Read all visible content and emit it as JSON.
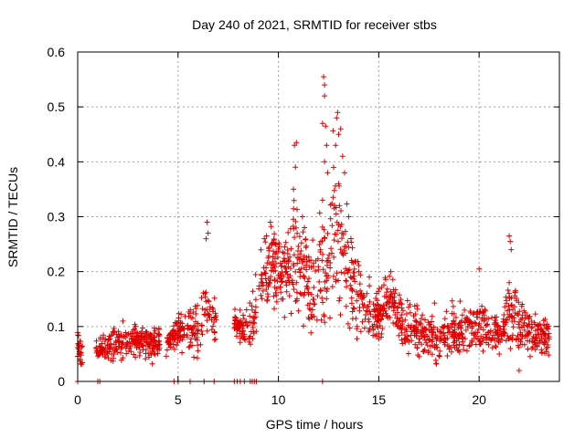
{
  "chart_data": {
    "type": "scatter",
    "title": "Day 240 of 2021, SRMTID for receiver stbs",
    "xlabel": "GPS time / hours",
    "ylabel": "SRMTID / TECUs",
    "xlim": [
      0,
      24
    ],
    "ylim": [
      0,
      0.6
    ],
    "xticks": [
      0,
      5,
      10,
      15,
      20
    ],
    "yticks": [
      0,
      0.1,
      0.2,
      0.3,
      0.4,
      0.5,
      0.6
    ],
    "grid": true,
    "marker": "plus",
    "color": "#e00000",
    "profile": [
      {
        "x": 0.0,
        "y": 0.06,
        "spread": 0.02
      },
      {
        "x": 0.3,
        "y": 0.05,
        "spread": 0.02
      },
      {
        "x": 1.0,
        "y": 0.06,
        "spread": 0.015
      },
      {
        "x": 2.0,
        "y": 0.07,
        "spread": 0.02
      },
      {
        "x": 3.0,
        "y": 0.075,
        "spread": 0.02
      },
      {
        "x": 3.8,
        "y": 0.07,
        "spread": 0.02
      },
      {
        "x": 4.5,
        "y": 0.075,
        "spread": 0.015
      },
      {
        "x": 5.0,
        "y": 0.09,
        "spread": 0.02
      },
      {
        "x": 5.6,
        "y": 0.1,
        "spread": 0.03
      },
      {
        "x": 6.0,
        "y": 0.08,
        "spread": 0.03
      },
      {
        "x": 6.5,
        "y": 0.14,
        "spread": 0.04
      },
      {
        "x": 6.8,
        "y": 0.11,
        "spread": 0.03
      },
      {
        "x": 8.0,
        "y": 0.1,
        "spread": 0.02
      },
      {
        "x": 8.6,
        "y": 0.1,
        "spread": 0.03
      },
      {
        "x": 9.2,
        "y": 0.18,
        "spread": 0.05
      },
      {
        "x": 9.7,
        "y": 0.22,
        "spread": 0.05
      },
      {
        "x": 10.3,
        "y": 0.2,
        "spread": 0.05
      },
      {
        "x": 10.8,
        "y": 0.24,
        "spread": 0.08
      },
      {
        "x": 11.3,
        "y": 0.2,
        "spread": 0.05
      },
      {
        "x": 11.8,
        "y": 0.15,
        "spread": 0.05
      },
      {
        "x": 12.3,
        "y": 0.22,
        "spread": 0.08
      },
      {
        "x": 12.8,
        "y": 0.28,
        "spread": 0.1
      },
      {
        "x": 13.3,
        "y": 0.22,
        "spread": 0.08
      },
      {
        "x": 13.8,
        "y": 0.17,
        "spread": 0.05
      },
      {
        "x": 14.3,
        "y": 0.14,
        "spread": 0.04
      },
      {
        "x": 15.0,
        "y": 0.12,
        "spread": 0.03
      },
      {
        "x": 15.6,
        "y": 0.16,
        "spread": 0.03
      },
      {
        "x": 16.2,
        "y": 0.1,
        "spread": 0.03
      },
      {
        "x": 17.0,
        "y": 0.09,
        "spread": 0.03
      },
      {
        "x": 18.0,
        "y": 0.08,
        "spread": 0.03
      },
      {
        "x": 19.0,
        "y": 0.09,
        "spread": 0.03
      },
      {
        "x": 20.0,
        "y": 0.1,
        "spread": 0.03
      },
      {
        "x": 21.0,
        "y": 0.09,
        "spread": 0.03
      },
      {
        "x": 21.6,
        "y": 0.12,
        "spread": 0.05
      },
      {
        "x": 22.5,
        "y": 0.09,
        "spread": 0.03
      },
      {
        "x": 23.5,
        "y": 0.08,
        "spread": 0.02
      }
    ],
    "gaps": [
      [
        0.25,
        0.9
      ],
      [
        4.1,
        4.4
      ],
      [
        6.9,
        7.8
      ],
      [
        8.9,
        9.0
      ]
    ],
    "peaks": [
      {
        "x": 6.45,
        "y": 0.29
      },
      {
        "x": 6.5,
        "y": 0.27
      },
      {
        "x": 6.4,
        "y": 0.26
      },
      {
        "x": 10.8,
        "y": 0.43
      },
      {
        "x": 10.9,
        "y": 0.435
      },
      {
        "x": 10.85,
        "y": 0.39
      },
      {
        "x": 10.75,
        "y": 0.35
      },
      {
        "x": 11.2,
        "y": 0.3
      },
      {
        "x": 11.3,
        "y": 0.28
      },
      {
        "x": 12.25,
        "y": 0.555
      },
      {
        "x": 12.3,
        "y": 0.54
      },
      {
        "x": 12.3,
        "y": 0.52
      },
      {
        "x": 12.2,
        "y": 0.47
      },
      {
        "x": 12.35,
        "y": 0.465
      },
      {
        "x": 12.4,
        "y": 0.43
      },
      {
        "x": 12.3,
        "y": 0.4
      },
      {
        "x": 12.45,
        "y": 0.38
      },
      {
        "x": 12.2,
        "y": 0.33
      },
      {
        "x": 12.95,
        "y": 0.49
      },
      {
        "x": 12.9,
        "y": 0.48
      },
      {
        "x": 13.0,
        "y": 0.45
      },
      {
        "x": 13.1,
        "y": 0.46
      },
      {
        "x": 12.85,
        "y": 0.43
      },
      {
        "x": 13.2,
        "y": 0.41
      },
      {
        "x": 13.3,
        "y": 0.38
      },
      {
        "x": 13.0,
        "y": 0.36
      },
      {
        "x": 13.5,
        "y": 0.3
      },
      {
        "x": 9.6,
        "y": 0.29
      },
      {
        "x": 9.3,
        "y": 0.26
      },
      {
        "x": 21.5,
        "y": 0.265
      },
      {
        "x": 21.55,
        "y": 0.255
      },
      {
        "x": 21.6,
        "y": 0.24
      },
      {
        "x": 21.5,
        "y": 0.18
      },
      {
        "x": 20.0,
        "y": 0.205
      },
      {
        "x": 15.6,
        "y": 0.2
      }
    ],
    "zeros": [
      0.0,
      1.0,
      1.1,
      4.8,
      5.0,
      5.6,
      6.3,
      6.8,
      7.8,
      7.95,
      8.1,
      8.3,
      8.6,
      8.7,
      8.8,
      8.9,
      12.2
    ]
  }
}
